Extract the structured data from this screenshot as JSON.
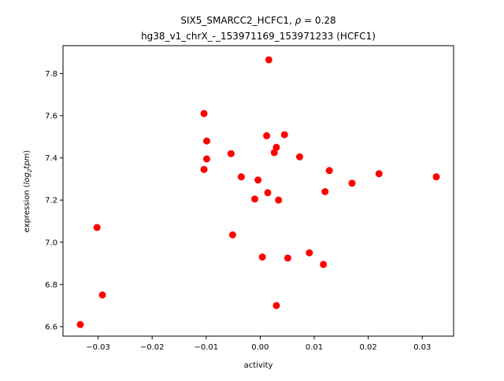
{
  "chart_data": {
    "type": "scatter",
    "title_main": "SIX5_SMARCC2_HCFC1, ",
    "title_rho_symbol": "ρ",
    "title_rho_value": " = 0.28",
    "title_line2": "hg38_v1_chrX_-_153971169_153971233 (HCFC1)",
    "xlabel": "activity",
    "ylabel_prefix": "expression (",
    "ylabel_log": "log",
    "ylabel_sub": "2",
    "ylabel_tpm": "tpm",
    "ylabel_suffix": ")",
    "xlim": [
      -0.0365,
      0.0358
    ],
    "ylim": [
      6.555,
      7.932
    ],
    "xticks": [
      -0.03,
      -0.02,
      -0.01,
      0.0,
      0.01,
      0.02,
      0.03
    ],
    "xtick_labels": [
      "−0.03",
      "−0.02",
      "−0.01",
      "0.00",
      "0.01",
      "0.02",
      "0.03"
    ],
    "yticks": [
      6.6,
      6.8,
      7.0,
      7.2,
      7.4,
      7.6,
      7.8
    ],
    "ytick_labels": [
      "6.6",
      "6.8",
      "7.0",
      "7.2",
      "7.4",
      "7.6",
      "7.8"
    ],
    "marker_color": "#ff0000",
    "grid": false,
    "points": [
      {
        "x": -0.0333,
        "y": 6.61
      },
      {
        "x": -0.0302,
        "y": 7.07
      },
      {
        "x": -0.0292,
        "y": 6.75
      },
      {
        "x": -0.0104,
        "y": 7.61
      },
      {
        "x": -0.0104,
        "y": 7.345
      },
      {
        "x": -0.0099,
        "y": 7.48
      },
      {
        "x": -0.0099,
        "y": 7.395
      },
      {
        "x": -0.0054,
        "y": 7.42
      },
      {
        "x": -0.0051,
        "y": 7.035
      },
      {
        "x": -0.0035,
        "y": 7.31
      },
      {
        "x": -0.001,
        "y": 7.205
      },
      {
        "x": -0.0004,
        "y": 7.295
      },
      {
        "x": 0.0004,
        "y": 6.93
      },
      {
        "x": 0.0012,
        "y": 7.505
      },
      {
        "x": 0.0014,
        "y": 7.235
      },
      {
        "x": 0.0016,
        "y": 7.865
      },
      {
        "x": 0.0026,
        "y": 7.425
      },
      {
        "x": 0.003,
        "y": 7.45
      },
      {
        "x": 0.003,
        "y": 6.7
      },
      {
        "x": 0.0034,
        "y": 7.2
      },
      {
        "x": 0.0045,
        "y": 7.51
      },
      {
        "x": 0.0051,
        "y": 6.925
      },
      {
        "x": 0.0073,
        "y": 7.405
      },
      {
        "x": 0.0091,
        "y": 6.95
      },
      {
        "x": 0.0117,
        "y": 6.895
      },
      {
        "x": 0.012,
        "y": 7.24
      },
      {
        "x": 0.0128,
        "y": 7.34
      },
      {
        "x": 0.017,
        "y": 7.28
      },
      {
        "x": 0.022,
        "y": 7.325
      },
      {
        "x": 0.0326,
        "y": 7.31
      }
    ]
  }
}
